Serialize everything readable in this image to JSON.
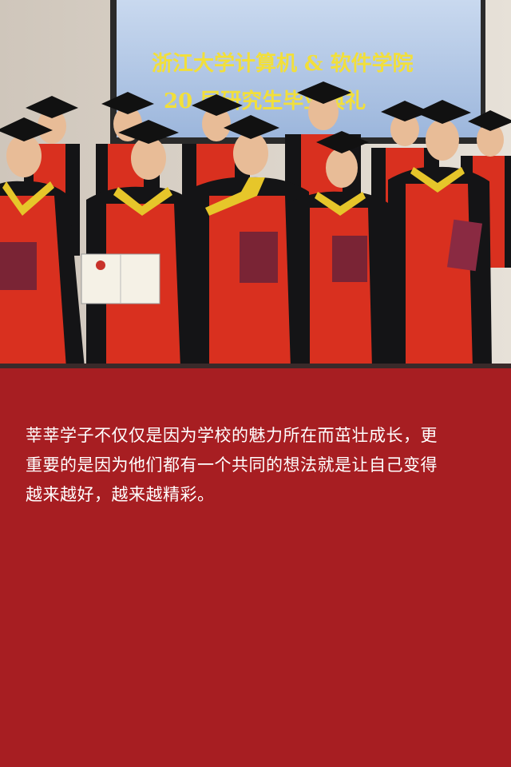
{
  "photo": {
    "banner_line_1": "浙江大学计算机 & 软件学院",
    "banner_line_2": "20  届研究生毕业典礼"
  },
  "caption": {
    "lines": [
      "莘莘学子不仅仅是因为学校的魅力所在而茁壮成长，更",
      "重要的是因为他们都有一个共同的想法就是让自己变得",
      "越来越好，越来越精彩。"
    ]
  },
  "colors": {
    "background": "#a71e22",
    "caption_text": "#ffffff",
    "gown_red": "#d9301f",
    "gown_black": "#141416",
    "hood_yellow": "#e6c62a"
  }
}
